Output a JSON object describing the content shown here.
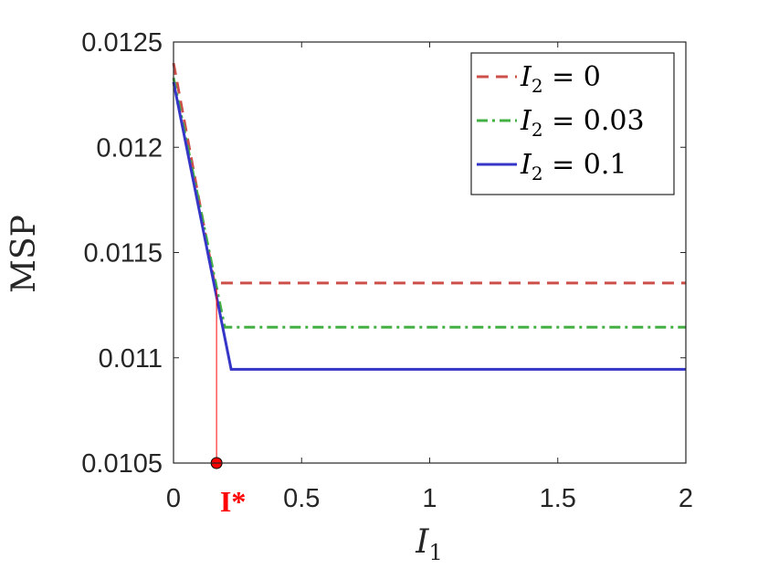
{
  "chart_data": {
    "type": "line",
    "xlabel": "I1",
    "xlabel_main": "I",
    "xlabel_sub": "1",
    "ylabel": "MSP",
    "xlim": [
      0,
      2
    ],
    "ylim": [
      0.0105,
      0.0125
    ],
    "xticks": [
      0,
      0.5,
      1,
      1.5,
      2
    ],
    "xtick_labels": [
      "0",
      "0.5",
      "1",
      "1.5",
      "2"
    ],
    "yticks": [
      0.0105,
      0.011,
      0.0115,
      0.012,
      0.0125
    ],
    "ytick_labels": [
      "0.0105",
      "0.011",
      "0.0115",
      "0.012",
      "0.0125"
    ],
    "grid": false,
    "legend_position": "top-right",
    "series": [
      {
        "name": "I2 = 0",
        "legend_main": "I",
        "legend_sub": "2",
        "legend_rest": " = 0",
        "color": "#cd4f4a",
        "style": "dashed",
        "x": [
          0,
          0.16,
          2
        ],
        "y": [
          0.0124,
          0.011355,
          0.011355
        ]
      },
      {
        "name": "I2 = 0.03",
        "legend_main": "I",
        "legend_sub": "2",
        "legend_rest": " = 0.03",
        "color": "#44b044",
        "style": "dashdot",
        "x": [
          0,
          0.2,
          2
        ],
        "y": [
          0.01233,
          0.011145,
          0.011145
        ]
      },
      {
        "name": "I2 = 0.1",
        "legend_main": "I",
        "legend_sub": "2",
        "legend_rest": " = 0.1",
        "color": "#3535c8",
        "style": "solid",
        "x": [
          0,
          0.225,
          2
        ],
        "y": [
          0.01231,
          0.010945,
          0.010945
        ]
      }
    ],
    "annotation": {
      "label": "I*",
      "color": "#ff0000",
      "x": 0.168,
      "y_top": 0.01133,
      "y_bottom": 0.0105
    }
  }
}
